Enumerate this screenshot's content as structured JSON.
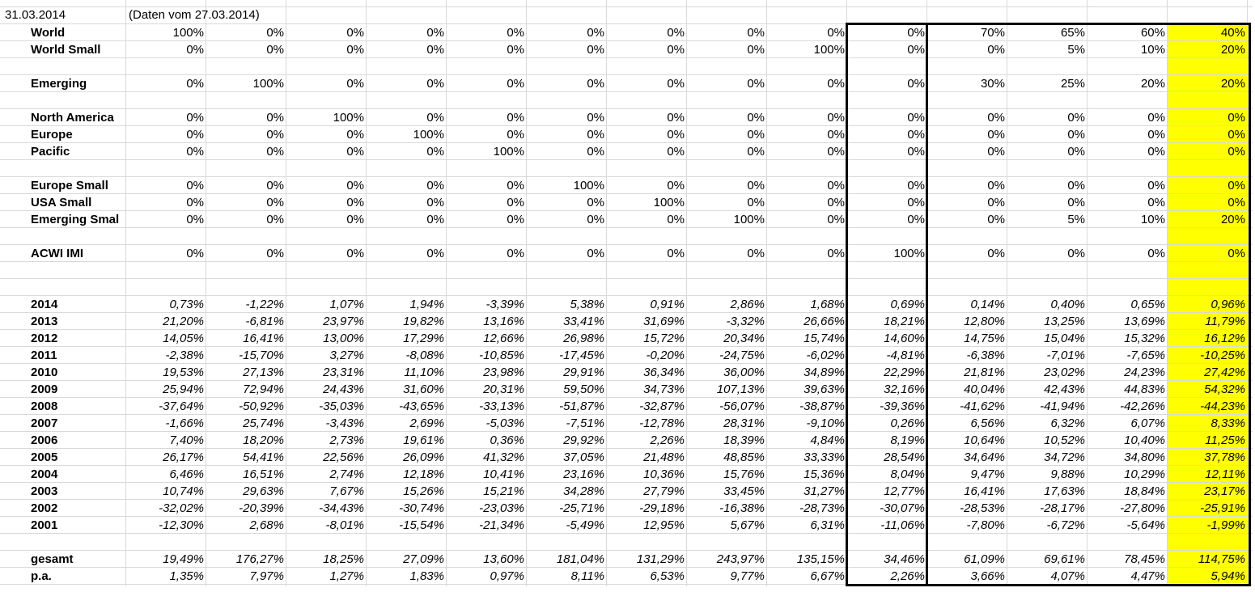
{
  "header": {
    "date": "31.03.2014",
    "note": "(Daten vom 27.03.2014)"
  },
  "colors": {
    "highlight": "#ffff00",
    "grid": "#d9d9d9",
    "border": "#000000"
  },
  "allocations": [
    {
      "label": "World",
      "values": [
        "100%",
        "0%",
        "0%",
        "0%",
        "0%",
        "0%",
        "0%",
        "0%",
        "0%",
        "0%",
        "70%",
        "65%",
        "60%",
        "40%"
      ]
    },
    {
      "label": "World Small",
      "values": [
        "0%",
        "0%",
        "0%",
        "0%",
        "0%",
        "0%",
        "0%",
        "0%",
        "100%",
        "0%",
        "0%",
        "5%",
        "10%",
        "20%"
      ]
    },
    {
      "label": "Emerging",
      "values": [
        "0%",
        "100%",
        "0%",
        "0%",
        "0%",
        "0%",
        "0%",
        "0%",
        "0%",
        "0%",
        "30%",
        "25%",
        "20%",
        "20%"
      ]
    },
    {
      "label": "North America",
      "values": [
        "0%",
        "0%",
        "100%",
        "0%",
        "0%",
        "0%",
        "0%",
        "0%",
        "0%",
        "0%",
        "0%",
        "0%",
        "0%",
        "0%"
      ]
    },
    {
      "label": "Europe",
      "values": [
        "0%",
        "0%",
        "0%",
        "100%",
        "0%",
        "0%",
        "0%",
        "0%",
        "0%",
        "0%",
        "0%",
        "0%",
        "0%",
        "0%"
      ]
    },
    {
      "label": "Pacific",
      "values": [
        "0%",
        "0%",
        "0%",
        "0%",
        "100%",
        "0%",
        "0%",
        "0%",
        "0%",
        "0%",
        "0%",
        "0%",
        "0%",
        "0%"
      ]
    },
    {
      "label": "Europe Small",
      "values": [
        "0%",
        "0%",
        "0%",
        "0%",
        "0%",
        "100%",
        "0%",
        "0%",
        "0%",
        "0%",
        "0%",
        "0%",
        "0%",
        "0%"
      ]
    },
    {
      "label": "USA Small",
      "values": [
        "0%",
        "0%",
        "0%",
        "0%",
        "0%",
        "0%",
        "100%",
        "0%",
        "0%",
        "0%",
        "0%",
        "0%",
        "0%",
        "0%"
      ]
    },
    {
      "label": "Emerging Smal",
      "values": [
        "0%",
        "0%",
        "0%",
        "0%",
        "0%",
        "0%",
        "0%",
        "100%",
        "0%",
        "0%",
        "0%",
        "5%",
        "10%",
        "20%"
      ]
    },
    {
      "label": "ACWI IMI",
      "values": [
        "0%",
        "0%",
        "0%",
        "0%",
        "0%",
        "0%",
        "0%",
        "0%",
        "0%",
        "100%",
        "0%",
        "0%",
        "0%",
        "0%"
      ]
    }
  ],
  "returns": [
    {
      "label": "2014",
      "values": [
        "0,73%",
        "-1,22%",
        "1,07%",
        "1,94%",
        "-3,39%",
        "5,38%",
        "0,91%",
        "2,86%",
        "1,68%",
        "0,69%",
        "0,14%",
        "0,40%",
        "0,65%",
        "0,96%"
      ]
    },
    {
      "label": "2013",
      "values": [
        "21,20%",
        "-6,81%",
        "23,97%",
        "19,82%",
        "13,16%",
        "33,41%",
        "31,69%",
        "-3,32%",
        "26,66%",
        "18,21%",
        "12,80%",
        "13,25%",
        "13,69%",
        "11,79%"
      ]
    },
    {
      "label": "2012",
      "values": [
        "14,05%",
        "16,41%",
        "13,00%",
        "17,29%",
        "12,66%",
        "26,98%",
        "15,72%",
        "20,34%",
        "15,74%",
        "14,60%",
        "14,75%",
        "15,04%",
        "15,32%",
        "16,12%"
      ]
    },
    {
      "label": "2011",
      "values": [
        "-2,38%",
        "-15,70%",
        "3,27%",
        "-8,08%",
        "-10,85%",
        "-17,45%",
        "-0,20%",
        "-24,75%",
        "-6,02%",
        "-4,81%",
        "-6,38%",
        "-7,01%",
        "-7,65%",
        "-10,25%"
      ]
    },
    {
      "label": "2010",
      "values": [
        "19,53%",
        "27,13%",
        "23,31%",
        "11,10%",
        "23,98%",
        "29,91%",
        "36,34%",
        "36,00%",
        "34,89%",
        "22,29%",
        "21,81%",
        "23,02%",
        "24,23%",
        "27,42%"
      ]
    },
    {
      "label": "2009",
      "values": [
        "25,94%",
        "72,94%",
        "24,43%",
        "31,60%",
        "20,31%",
        "59,50%",
        "34,73%",
        "107,13%",
        "39,63%",
        "32,16%",
        "40,04%",
        "42,43%",
        "44,83%",
        "54,32%"
      ]
    },
    {
      "label": "2008",
      "values": [
        "-37,64%",
        "-50,92%",
        "-35,03%",
        "-43,65%",
        "-33,13%",
        "-51,87%",
        "-32,87%",
        "-56,07%",
        "-38,87%",
        "-39,36%",
        "-41,62%",
        "-41,94%",
        "-42,26%",
        "-44,23%"
      ]
    },
    {
      "label": "2007",
      "values": [
        "-1,66%",
        "25,74%",
        "-3,43%",
        "2,69%",
        "-5,03%",
        "-7,51%",
        "-12,78%",
        "28,31%",
        "-9,10%",
        "0,26%",
        "6,56%",
        "6,32%",
        "6,07%",
        "8,33%"
      ]
    },
    {
      "label": "2006",
      "values": [
        "7,40%",
        "18,20%",
        "2,73%",
        "19,61%",
        "0,36%",
        "29,92%",
        "2,26%",
        "18,39%",
        "4,84%",
        "8,19%",
        "10,64%",
        "10,52%",
        "10,40%",
        "11,25%"
      ]
    },
    {
      "label": "2005",
      "values": [
        "26,17%",
        "54,41%",
        "22,56%",
        "26,09%",
        "41,32%",
        "37,05%",
        "21,48%",
        "48,85%",
        "33,33%",
        "28,54%",
        "34,64%",
        "34,72%",
        "34,80%",
        "37,78%"
      ]
    },
    {
      "label": "2004",
      "values": [
        "6,46%",
        "16,51%",
        "2,74%",
        "12,18%",
        "10,41%",
        "23,16%",
        "10,36%",
        "15,76%",
        "15,36%",
        "8,04%",
        "9,47%",
        "9,88%",
        "10,29%",
        "12,11%"
      ]
    },
    {
      "label": "2003",
      "values": [
        "10,74%",
        "29,63%",
        "7,67%",
        "15,26%",
        "15,21%",
        "34,28%",
        "27,79%",
        "33,45%",
        "31,27%",
        "12,77%",
        "16,41%",
        "17,63%",
        "18,84%",
        "23,17%"
      ]
    },
    {
      "label": "2002",
      "values": [
        "-32,02%",
        "-20,39%",
        "-34,43%",
        "-30,74%",
        "-23,03%",
        "-25,71%",
        "-29,18%",
        "-16,38%",
        "-28,73%",
        "-30,07%",
        "-28,53%",
        "-28,17%",
        "-27,80%",
        "-25,91%"
      ]
    },
    {
      "label": "2001",
      "values": [
        "-12,30%",
        "2,68%",
        "-8,01%",
        "-15,54%",
        "-21,34%",
        "-5,49%",
        "12,95%",
        "5,67%",
        "6,31%",
        "-11,06%",
        "-7,80%",
        "-6,72%",
        "-5,64%",
        "-1,99%"
      ]
    }
  ],
  "summary": [
    {
      "label": "gesamt",
      "values": [
        "19,49%",
        "176,27%",
        "18,25%",
        "27,09%",
        "13,60%",
        "181,04%",
        "131,29%",
        "243,97%",
        "135,15%",
        "34,46%",
        "61,09%",
        "69,61%",
        "78,45%",
        "114,75%"
      ]
    },
    {
      "label": "p.a.",
      "values": [
        "1,35%",
        "7,97%",
        "1,27%",
        "1,83%",
        "0,97%",
        "8,11%",
        "6,53%",
        "9,77%",
        "6,67%",
        "2,26%",
        "3,66%",
        "4,07%",
        "4,47%",
        "5,94%"
      ]
    }
  ]
}
